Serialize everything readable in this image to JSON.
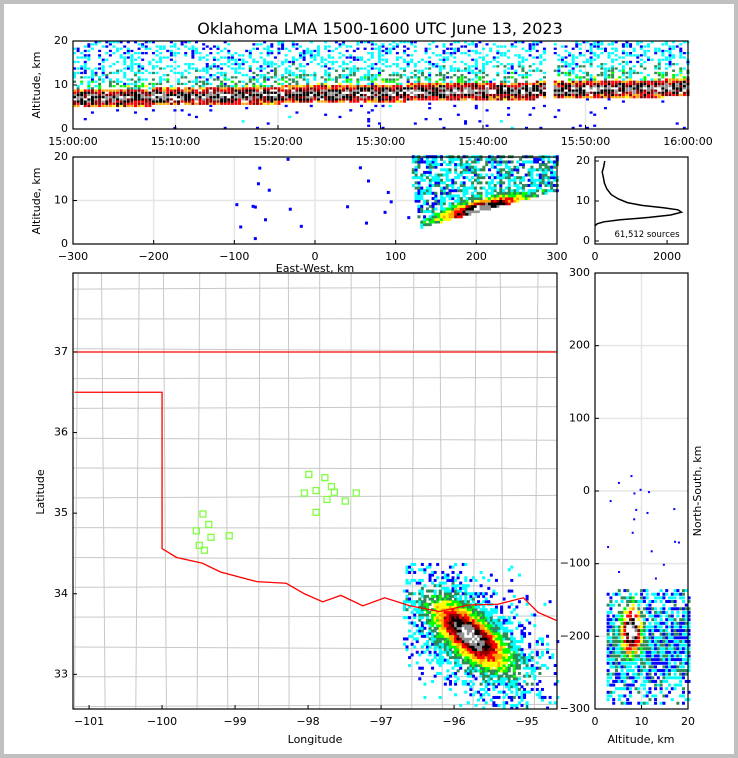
{
  "title": "Oklahoma LMA 1500-1600 UTC June 13, 2023",
  "chart_data": [
    {
      "id": "time-height",
      "type": "heatmap",
      "xlabel": "",
      "ylabel": "Altitude, km",
      "xlim_minutes": [
        0,
        60
      ],
      "ylim": [
        0,
        20
      ],
      "xticks": [
        "15:00:00",
        "15:10:00",
        "15:20:00",
        "15:30:00",
        "15:40:00",
        "15:50:00",
        "16:00:00"
      ],
      "yticks": [
        "0",
        "10",
        "20"
      ],
      "main_band_altitude_km": [
        5,
        10
      ],
      "gaps_minutes": [
        46.5
      ]
    },
    {
      "id": "ew-height",
      "type": "heatmap",
      "xlabel": "East-West, km",
      "ylabel": "Altitude, km",
      "xlim": [
        -300,
        300
      ],
      "ylim": [
        0,
        20
      ],
      "xticks": [
        "−300",
        "−200",
        "−100",
        "0",
        "100",
        "200",
        "300"
      ],
      "yticks": [
        "0",
        "10",
        "20"
      ],
      "density_core": {
        "ew_km": 200,
        "alt_km": 7
      }
    },
    {
      "id": "altitude-histogram",
      "type": "line",
      "xlim": [
        0,
        2580
      ],
      "ylim": [
        -0.75,
        21
      ],
      "xticks": [
        "0",
        "2000"
      ],
      "yticks": [
        "0",
        "10",
        "20"
      ],
      "annotation": "61,512 sources",
      "points": [
        [
          0,
          3.8
        ],
        [
          60,
          4.3
        ],
        [
          250,
          4.8
        ],
        [
          700,
          5.3
        ],
        [
          1500,
          5.9
        ],
        [
          2100,
          6.5
        ],
        [
          2400,
          7.2
        ],
        [
          2300,
          7.8
        ],
        [
          1900,
          8.3
        ],
        [
          1300,
          8.9
        ],
        [
          900,
          9.6
        ],
        [
          650,
          10.5
        ],
        [
          450,
          11.6
        ],
        [
          330,
          13
        ],
        [
          260,
          14.5
        ],
        [
          230,
          16
        ],
        [
          200,
          17.2
        ],
        [
          240,
          18.5
        ],
        [
          270,
          20
        ]
      ]
    },
    {
      "id": "plan-view-map",
      "type": "scatter",
      "xlabel": "Longitude",
      "ylabel": "Latitude",
      "xlim": [
        -101.22,
        -94.59
      ],
      "ylim": [
        32.57,
        37.98
      ],
      "xticks": [
        "−101",
        "−100",
        "−99",
        "−98",
        "−97",
        "−96",
        "−95"
      ],
      "yticks": [
        "33",
        "34",
        "35",
        "36",
        "37"
      ],
      "density_core": {
        "lon": -95.8,
        "lat": 33.5
      },
      "stations": [
        [
          -99.44,
          34.99
        ],
        [
          -99.36,
          34.86
        ],
        [
          -99.53,
          34.78
        ],
        [
          -99.33,
          34.7
        ],
        [
          -99.49,
          34.6
        ],
        [
          -99.42,
          34.54
        ],
        [
          -99.08,
          34.72
        ],
        [
          -97.99,
          35.48
        ],
        [
          -98.05,
          35.25
        ],
        [
          -97.89,
          35.28
        ],
        [
          -97.77,
          35.44
        ],
        [
          -97.68,
          35.33
        ],
        [
          -97.74,
          35.17
        ],
        [
          -97.64,
          35.26
        ],
        [
          -97.49,
          35.15
        ],
        [
          -97.34,
          35.25
        ],
        [
          -97.89,
          35.01
        ]
      ],
      "station_color": "#80ff40",
      "border_color": "#ff0000"
    },
    {
      "id": "ns-height",
      "type": "heatmap",
      "xlabel": "Altitude, km",
      "ylabel": "North-South, km",
      "xlim": [
        0,
        20
      ],
      "ylim": [
        -300,
        300
      ],
      "xticks": [
        "0",
        "10",
        "20"
      ],
      "yticks": [
        "−300",
        "−200",
        "−100",
        "0",
        "100",
        "200",
        "300"
      ],
      "density_core": {
        "alt_km": 7.5,
        "ns_km": -185
      }
    }
  ],
  "colormap": [
    "#0000ff",
    "#00ffff",
    "#2e8b57",
    "#00ff00",
    "#ffff00",
    "#ffa500",
    "#ff0000",
    "#8b0000",
    "#000000",
    "#909090",
    "#ffffff"
  ]
}
